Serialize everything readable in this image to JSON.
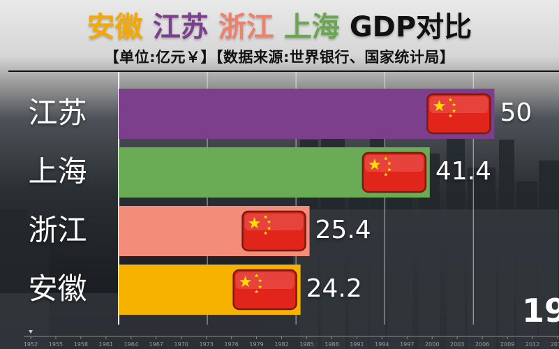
{
  "title": {
    "parts": [
      {
        "text": "安徽",
        "color": "#f5a800"
      },
      {
        "text": "江苏",
        "color": "#7c3f8e"
      },
      {
        "text": "浙江",
        "color": "#f0806a"
      },
      {
        "text": "上海",
        "color": "#6aa84f"
      },
      {
        "text": "GDP对比",
        "color": "#111111"
      }
    ]
  },
  "subtitle": "【单位:亿元￥】【数据来源:世界银行、国家统计局】",
  "year_label": "19",
  "chart_data": {
    "type": "bar",
    "orientation": "horizontal",
    "categories": [
      "江苏",
      "上海",
      "浙江",
      "安徽"
    ],
    "values": [
      50,
      41.4,
      25.4,
      24.2
    ],
    "value_labels": [
      "50",
      "41.4",
      "25.4",
      "24.2"
    ],
    "colors": [
      "#7b3f8c",
      "#6aab55",
      "#f48c7a",
      "#f7b200"
    ],
    "xlim": [
      0,
      58.5
    ],
    "gridlines": [
      0,
      11.8,
      23.6,
      35.4,
      47.2
    ],
    "title": "安徽 江苏 浙江 上海 GDP对比",
    "xlabel": "",
    "ylabel": "",
    "timeline_ticks": [
      "1952",
      "1955",
      "1958",
      "1961",
      "1964",
      "1967",
      "1970",
      "1973",
      "1976",
      "1979",
      "1982",
      "1985",
      "1988",
      "1991",
      "1994",
      "1997",
      "2000",
      "2003",
      "2006",
      "2009",
      "2012",
      "2015"
    ]
  },
  "icons": {
    "bar_marker": "china-flag-icon",
    "timeline_marker": "triangle-marker-icon"
  }
}
